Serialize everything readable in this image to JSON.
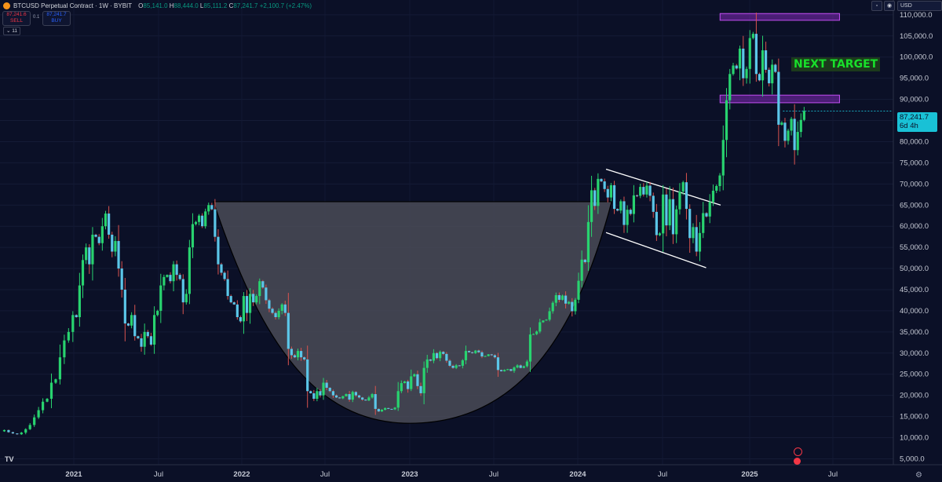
{
  "header": {
    "symbol": "BTCUSD Perpetual Contract · 1W · BYBIT",
    "open": "85,141.0",
    "high": "88,444.0",
    "low": "85,111.2",
    "close": "87,241.7",
    "change": "+2,100.7 (+2.47%)"
  },
  "trade": {
    "sell_price": "87,241.6",
    "sell_label": "SELL",
    "spread": "0.1",
    "buy_price": "87,241.7",
    "buy_label": "BUY"
  },
  "indicator_badge": "11",
  "currency": "USD",
  "last_price": "87,241.7",
  "countdown": "6d 4h",
  "annotation": "NEXT TARGET",
  "colors": {
    "background": "#0b1027",
    "up_candle": "#28d36f",
    "down_candle": "#5bc6e8",
    "price_tag": "#19c1d6",
    "zone": "#9a2fd4",
    "cup": "#4a4b57",
    "annotation": "#18e02b"
  },
  "chart_data": {
    "type": "candlestick",
    "y_ticks": [
      "110,000.0",
      "105,000.0",
      "100,000.0",
      "95,000.0",
      "90,000.0",
      "85,000.0",
      "80,000.0",
      "75,000.0",
      "70,000.0",
      "65,000.0",
      "60,000.0",
      "55,000.0",
      "50,000.0",
      "45,000.0",
      "40,000.0",
      "35,000.0",
      "30,000.0",
      "25,000.0",
      "20,000.0",
      "15,000.0",
      "10,000.0",
      "5,000.0"
    ],
    "x_ticks": [
      "2021",
      "Jul",
      "2022",
      "Jul",
      "2023",
      "Jul",
      "2024",
      "Jul",
      "2025",
      "Jul"
    ],
    "ylim": [
      3600,
      113500
    ],
    "resistance_zones": [
      [
        108700,
        110300
      ],
      [
        89200,
        91000
      ]
    ],
    "cup_rim": 65800,
    "cup_bottom": 13400,
    "channel": {
      "upper": [
        [
          "2024-03",
          73500
        ],
        [
          "2024-11",
          65000
        ]
      ],
      "lower": [
        [
          "2024-03",
          58500
        ],
        [
          "2024-10",
          50200
        ]
      ]
    },
    "weekly_closes": [
      11500,
      11800,
      11300,
      11000,
      10800,
      11200,
      12000,
      13000,
      14800,
      16500,
      18500,
      19200,
      23000,
      23800,
      29000,
      33000,
      35000,
      39000,
      38500,
      46000,
      52000,
      55000,
      51000,
      58000,
      57500,
      56000,
      60000,
      63000,
      58000,
      54000,
      56500,
      50000,
      45000,
      37000,
      36500,
      39000,
      34000,
      33500,
      31500,
      35000,
      34000,
      32000,
      39000,
      40000,
      46000,
      48000,
      48500,
      47000,
      51000,
      48500,
      47500,
      42000,
      44000,
      55000,
      60500,
      61000,
      62500,
      60000,
      63500,
      65000,
      64000,
      57500,
      51000,
      49000,
      47500,
      43500,
      42000,
      41500,
      38500,
      37500,
      43500,
      39500,
      44000,
      42000,
      43500,
      47000,
      45500,
      42500,
      40500,
      39500,
      38500,
      40000,
      41500,
      39500,
      31000,
      29500,
      29000,
      30500,
      29000,
      28500,
      21000,
      20500,
      19200,
      21000,
      20000,
      23000,
      21800,
      21000,
      20000,
      19500,
      19300,
      19800,
      20300,
      19000,
      20800,
      20000,
      19500,
      19000,
      18800,
      19500,
      20300,
      16800,
      16200,
      16600,
      17000,
      16800,
      16700,
      17100,
      21000,
      22900,
      23300,
      21500,
      24500,
      25000,
      22200,
      20500,
      26500,
      28500,
      28200,
      30000,
      28800,
      30300,
      29800,
      28200,
      27000,
      26500,
      27100,
      27000,
      28300,
      30500,
      30200,
      30000,
      30600,
      30200,
      29200,
      29300,
      29700,
      29500,
      29000,
      26000,
      25700,
      26000,
      26200,
      25800,
      26600,
      27100,
      26500,
      26900,
      28000,
      34400,
      34500,
      35100,
      37300,
      37700,
      37900,
      39900,
      41900,
      43700,
      42600,
      43600,
      41700,
      42100,
      39900,
      42600,
      47100,
      52100,
      51500,
      61000,
      68500,
      64800,
      71200,
      70600,
      68800,
      66800,
      69700,
      64100,
      63700,
      65900,
      60300,
      63900,
      62900,
      67300,
      67200,
      69300,
      67500,
      69600,
      67200,
      63400,
      57900,
      58300,
      67500,
      60200,
      66400,
      58100,
      64000,
      68200,
      70400,
      64100,
      57200,
      59800,
      54000,
      58400,
      63100,
      62300,
      65700,
      68400,
      69500,
      72000,
      80400,
      89800,
      96000,
      98000,
      97300,
      102000,
      95000,
      97200,
      104500,
      105500,
      96000,
      94500,
      101600,
      97000,
      93800,
      98200,
      96500,
      84000,
      84500,
      80200,
      82600,
      85400,
      78000,
      82300,
      85141,
      87241
    ]
  }
}
